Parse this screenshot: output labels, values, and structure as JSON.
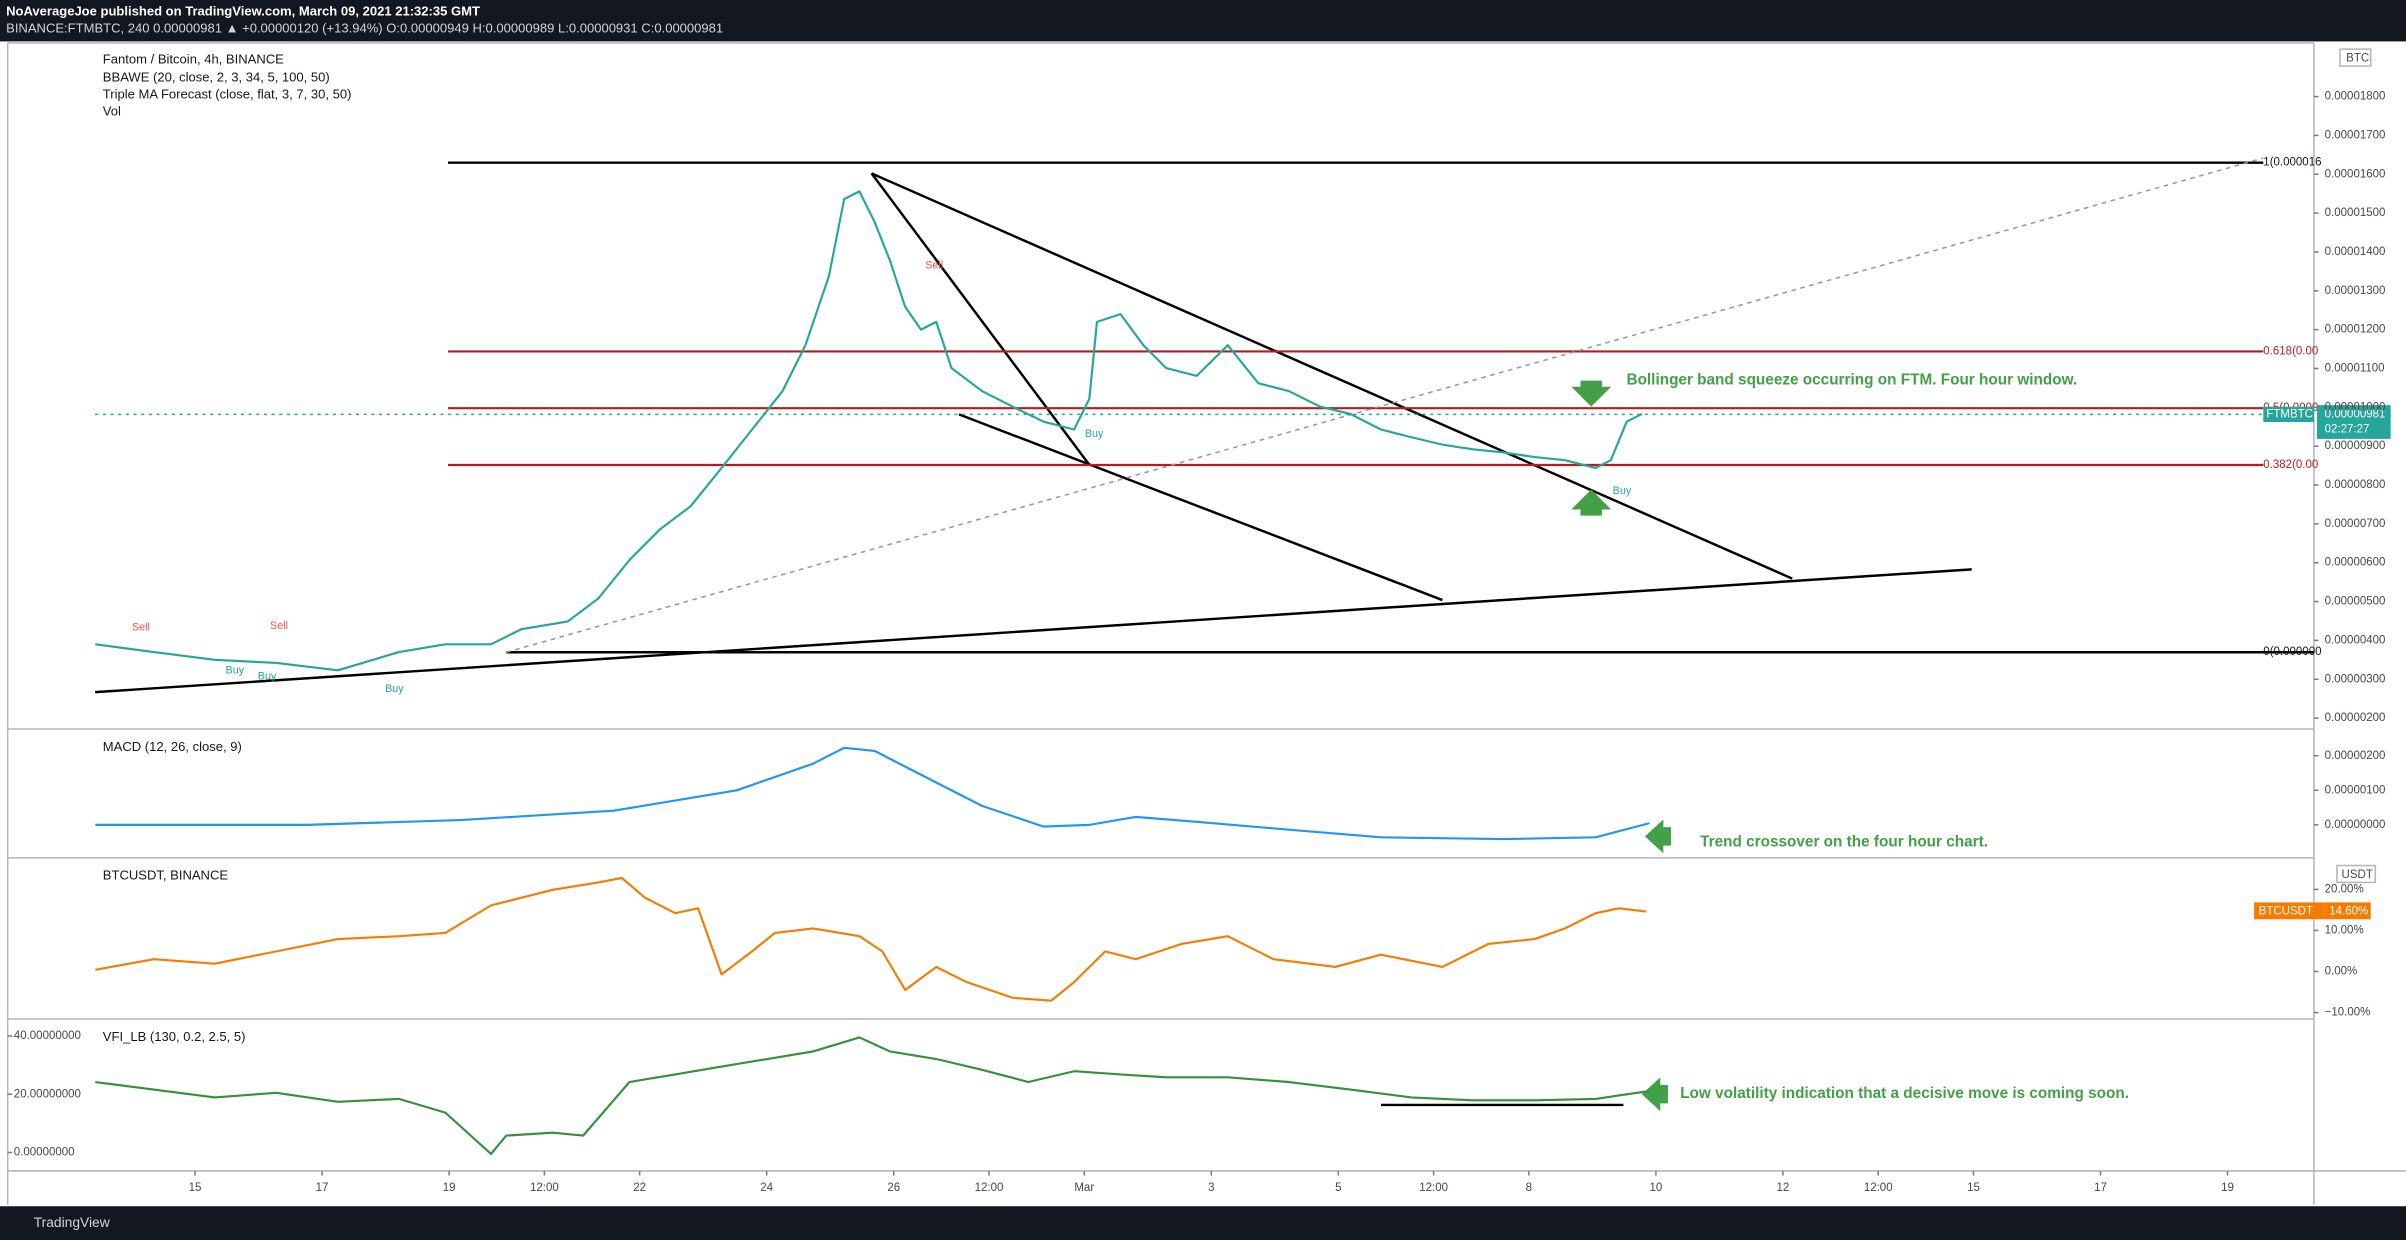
{
  "header": {
    "line1": "NoAverageJoe published on TradingView.com, March 09, 2021 21:32:35 GMT",
    "line2": "BINANCE:FTMBTC, 240 0.00000981 ▲ +0.00000120 (+13.94%) O:0.00000949 H:0.00000989 L:0.00000931 C:0.00000981"
  },
  "indicators": [
    "BBAWE (20, close, 2, 3, 34, 5, 100, 50)",
    "Triple MA Forecast (close, flat, 3, 7, 30, 50)",
    "Vol"
  ],
  "fib_labels": [
    "1(0.000016",
    "0.618(0.00",
    "0.5(0.0000",
    "0.382(0.00",
    "0(0.000000"
  ],
  "signals": {
    "sell": [
      "Sell",
      "Sell",
      "Sell"
    ],
    "buy": [
      "Buy",
      "Buy",
      "Buy",
      "Buy",
      "Buy"
    ]
  },
  "annotations": [
    "Bollinger band squeeze occurring on FTM. Four hour window.",
    "Trend crossover on the four hour chart.",
    "Low volatility indication that a decisive move is coming soon."
  ],
  "price_tags": {
    "symbol": "FTMBTC",
    "price": "0.00000981",
    "countdown": "02:27:27",
    "btc_symbol": "BTCUSDT",
    "btc_value": "14.60%",
    "currency": "BTC",
    "btc_currency": "USDT"
  },
  "footer": "TradingView",
  "chart_data": [
    {
      "type": "line",
      "title": "Fantom / Bitcoin, 4h, BINANCE",
      "xlim": [
        -2.95,
        33.36
      ],
      "ylim": [
        1.76e-06,
        1.938e-05
      ],
      "yticks": [
        {
          "value": 2e-06,
          "label": "0.00000200"
        },
        {
          "value": 3e-06,
          "label": "0.00000300"
        },
        {
          "value": 4e-06,
          "label": "0.00000400"
        },
        {
          "value": 5e-06,
          "label": "0.00000500"
        },
        {
          "value": 6e-06,
          "label": "0.00000600"
        },
        {
          "value": 7e-06,
          "label": "0.00000700"
        },
        {
          "value": 8e-06,
          "label": "0.00000800"
        },
        {
          "value": 9e-06,
          "label": "0.00000900"
        },
        {
          "value": 1e-05,
          "label": "0.00001000"
        },
        {
          "value": 1.1e-05,
          "label": "0.00001100"
        },
        {
          "value": 1.2e-05,
          "label": "0.00001200"
        },
        {
          "value": 1.3e-05,
          "label": "0.00001300"
        },
        {
          "value": 1.4e-05,
          "label": "0.00001400"
        },
        {
          "value": 1.5e-05,
          "label": "0.00001500"
        },
        {
          "value": 1.6e-05,
          "label": "0.00001600"
        },
        {
          "value": 1.7e-05,
          "label": "0.00001700"
        },
        {
          "value": 1.8e-05,
          "label": "0.00001800"
        }
      ],
      "yaxis_side": "right",
      "x": [
        -1.57,
        -0.65,
        0.31,
        1.28,
        2.25,
        3.21,
        3.94,
        4.66,
        5.14,
        5.87,
        6.35,
        6.84,
        7.32,
        7.8,
        8.29,
        8.77,
        9.25,
        9.61,
        9.98,
        10.22,
        10.46,
        10.7,
        10.94,
        11.18,
        11.43,
        11.67,
        11.91,
        12.39,
        12.87,
        13.36,
        13.84,
        14.08,
        14.2,
        14.57,
        14.93,
        15.29,
        15.77,
        16.26,
        16.74,
        17.22,
        17.71,
        18.19,
        18.67,
        19.15,
        19.64,
        20.12,
        20.6,
        21.09,
        21.57,
        22.05,
        22.29,
        22.54,
        22.78
      ],
      "series": [
        {
          "name": "FTMBTC",
          "color": "#26a69a",
          "values": [
            3.9e-06,
            3.7e-06,
            3.5e-06,
            3.42e-06,
            3.23e-06,
            3.7e-06,
            3.9e-06,
            3.9e-06,
            4.29e-06,
            4.49e-06,
            5.08e-06,
            6.07e-06,
            6.86e-06,
            7.45e-06,
            8.44e-06,
            9.43e-06,
            1.042e-05,
            1.16e-05,
            1.338e-05,
            1.536e-05,
            1.556e-05,
            1.477e-05,
            1.378e-05,
            1.259e-05,
            1.2e-05,
            1.22e-05,
            1.101e-05,
            1.042e-05,
            1.002e-05,
            9.63e-06,
            9.43e-06,
            1.022e-05,
            1.22e-05,
            1.24e-05,
            1.16e-05,
            1.101e-05,
            1.081e-05,
            1.16e-05,
            1.062e-05,
            1.042e-05,
            1.002e-05,
            9.83e-06,
            9.43e-06,
            9.23e-06,
            9.04e-06,
            8.92e-06,
            8.84e-06,
            8.72e-06,
            8.64e-06,
            8.44e-06,
            8.64e-06,
            9.63e-06,
            9.83e-06
          ]
        }
      ]
    },
    {
      "type": "line",
      "title": "MACD (12, 26, close, 9)",
      "xlim": [
        -2.95,
        33.36
      ],
      "ylim": [
        -9.1e-07,
        2.73e-06
      ],
      "yticks": [
        {
          "value": 0,
          "label": "0.00000000"
        },
        {
          "value": 1e-06,
          "label": "0.00000100"
        },
        {
          "value": 2e-06,
          "label": "0.00000200"
        }
      ],
      "yaxis_side": "right",
      "x": [
        -1.57,
        1.76,
        4.18,
        6.59,
        8.53,
        9.73,
        10.22,
        10.7,
        11.43,
        12.39,
        13.36,
        14.08,
        14.81,
        15.77,
        17.22,
        18.67,
        20.6,
        22.05,
        22.9
      ],
      "series": [
        {
          "name": "MACD",
          "color": "#2196f3",
          "values": [
            0,
            0,
            1.4e-07,
            4.1e-07,
            1e-06,
            1.77e-06,
            2.23e-06,
            2.14e-06,
            1.45e-06,
            5.5e-07,
            -5e-08,
            0,
            2.3e-07,
            9e-08,
            -1.4e-07,
            -3.6e-07,
            -4.1e-07,
            -3.6e-07,
            5e-08
          ]
        }
      ]
    },
    {
      "type": "line",
      "title": "BTCUSDT, BINANCE",
      "xlim": [
        -2.95,
        33.36
      ],
      "ylim": [
        -11.2,
        27.3
      ],
      "yticks": [
        {
          "value": -10,
          "label": "−10.00%"
        },
        {
          "value": 0,
          "label": "0.00%"
        },
        {
          "value": 10,
          "label": "10.00%"
        },
        {
          "value": 20,
          "label": "20.00%"
        }
      ],
      "yaxis_side": "right",
      "x": [
        -1.57,
        -0.65,
        0.31,
        1.28,
        2.25,
        3.21,
        3.94,
        4.66,
        5.63,
        6.35,
        6.72,
        7.08,
        7.56,
        7.92,
        8.29,
        8.77,
        9.13,
        9.73,
        10.46,
        10.82,
        11.18,
        11.67,
        12.15,
        12.87,
        13.48,
        13.84,
        14.33,
        14.81,
        15.53,
        16.26,
        16.98,
        17.95,
        18.67,
        19.64,
        20.36,
        21.09,
        21.57,
        22.05,
        22.42,
        22.85
      ],
      "series": [
        {
          "name": "BTCUSDT",
          "color": "#f57c00",
          "values": [
            0.4,
            3,
            1.9,
            4.9,
            7.9,
            8.6,
            9.4,
            16.1,
            19.9,
            21.7,
            22.8,
            18,
            14.2,
            15.4,
            -0.7,
            4.9,
            9.4,
            10.5,
            8.6,
            4.9,
            -4.5,
            1.1,
            -2.6,
            -6.4,
            -7.1,
            -2.6,
            4.9,
            3,
            6.7,
            8.6,
            3,
            1.1,
            4.1,
            1.1,
            6.7,
            7.9,
            10.5,
            14.2,
            15.4,
            14.6
          ]
        }
      ]
    },
    {
      "type": "line",
      "title": "VFI_LB (130, 0.2, 2.5, 5)",
      "xlim": [
        -2.95,
        33.36
      ],
      "ylim": [
        -5.8,
        45.3
      ],
      "yticks": [
        {
          "value": 0,
          "label": "0.00000000"
        },
        {
          "value": 20,
          "label": "20.00000000"
        },
        {
          "value": 40,
          "label": "40.00000000"
        }
      ],
      "yaxis_side": "left",
      "xticks": [
        {
          "value": 0,
          "label": "15"
        },
        {
          "value": 2,
          "label": "17"
        },
        {
          "value": 4,
          "label": "19"
        },
        {
          "value": 5.5,
          "label": "12:00"
        },
        {
          "value": 7,
          "label": "22"
        },
        {
          "value": 9,
          "label": "24"
        },
        {
          "value": 11,
          "label": "26"
        },
        {
          "value": 12.5,
          "label": "12:00"
        },
        {
          "value": 14,
          "label": "Mar"
        },
        {
          "value": 16,
          "label": "3"
        },
        {
          "value": 18,
          "label": "5"
        },
        {
          "value": 19.5,
          "label": "12:00"
        },
        {
          "value": 21,
          "label": "8"
        },
        {
          "value": 23,
          "label": "10"
        },
        {
          "value": 25,
          "label": "12"
        },
        {
          "value": 26.5,
          "label": "12:00"
        },
        {
          "value": 28,
          "label": "15"
        },
        {
          "value": 30,
          "label": "17"
        },
        {
          "value": 32,
          "label": "19"
        }
      ],
      "x": [
        -1.57,
        -0.65,
        0.31,
        1.28,
        2.25,
        3.21,
        3.94,
        4.66,
        4.9,
        5.63,
        6.11,
        6.84,
        7.56,
        8.29,
        9.01,
        9.73,
        10.46,
        10.94,
        11.67,
        12.39,
        13.12,
        13.84,
        14.57,
        15.29,
        16.26,
        17.22,
        18.19,
        19.15,
        20.12,
        21.09,
        22.05,
        22.54,
        22.9
      ],
      "series": [
        {
          "name": "VFI",
          "color": "#388e3c",
          "values": [
            24.2,
            21.6,
            18.9,
            20.5,
            17.4,
            18.4,
            13.7,
            -0.5,
            5.8,
            6.8,
            5.8,
            24.2,
            26.8,
            29.5,
            32.1,
            34.7,
            39.5,
            34.7,
            32.1,
            28.4,
            24.2,
            27.9,
            26.8,
            25.8,
            25.8,
            24.2,
            21.6,
            18.9,
            17.9,
            17.9,
            18.4,
            20,
            21.1
          ]
        }
      ]
    }
  ]
}
